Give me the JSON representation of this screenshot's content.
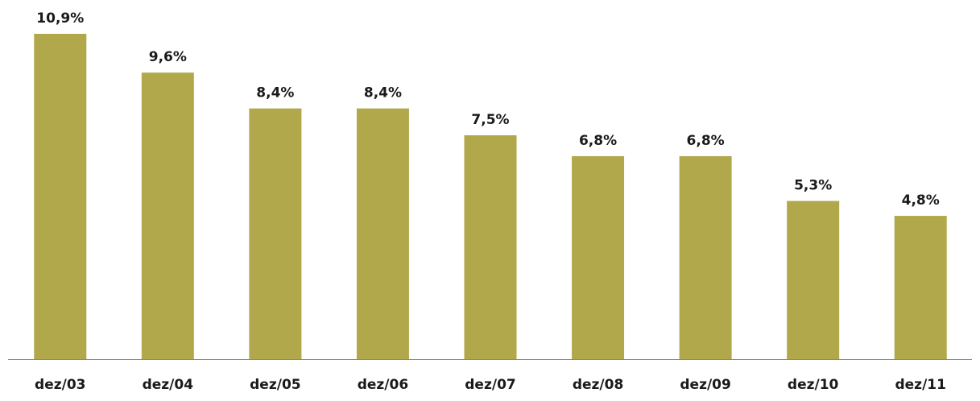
{
  "chart_data": {
    "type": "bar",
    "categories": [
      "dez/03",
      "dez/04",
      "dez/05",
      "dez/06",
      "dez/07",
      "dez/08",
      "dez/09",
      "dez/10",
      "dez/11"
    ],
    "values": [
      10.9,
      9.6,
      8.4,
      8.4,
      7.5,
      6.8,
      6.8,
      5.3,
      4.8
    ],
    "value_labels": [
      "10,9%",
      "9,6%",
      "8,4%",
      "8,4%",
      "7,5%",
      "6,8%",
      "6,8%",
      "5,3%",
      "4,8%"
    ],
    "color": "#b1a84c"
  }
}
